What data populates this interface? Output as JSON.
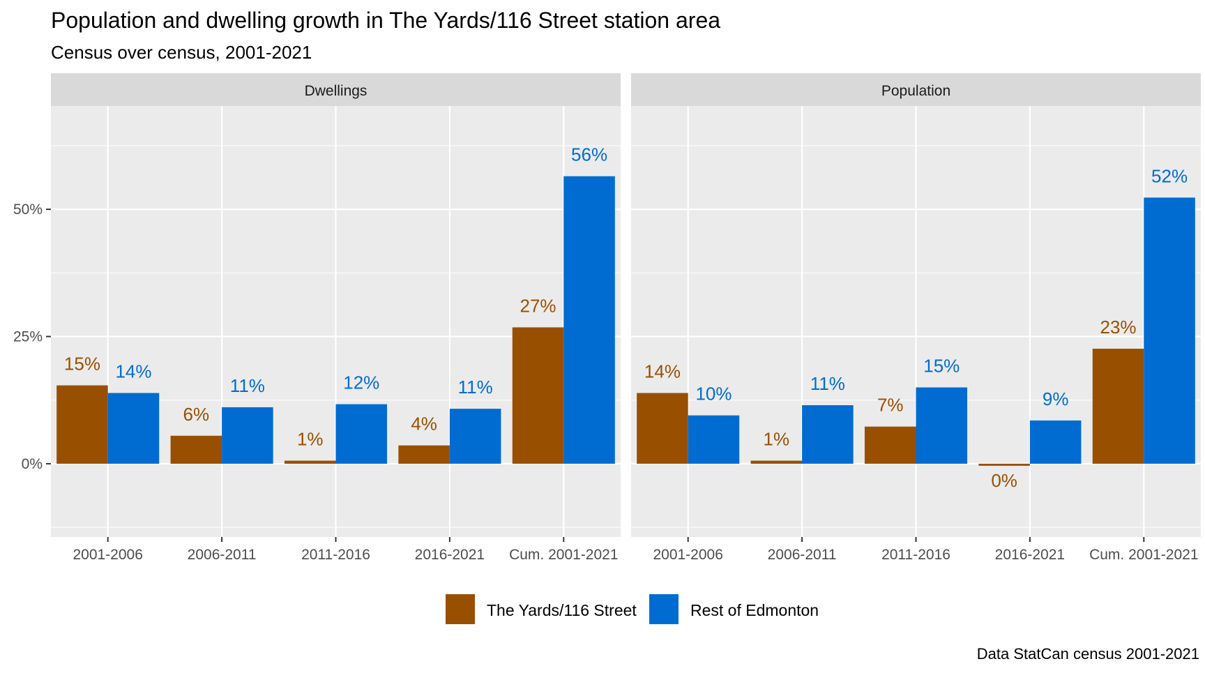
{
  "chart_data": {
    "type": "bar",
    "title": "Population and dwelling growth in The Yards/116 Street station area",
    "subtitle": "Census over census, 2001-2021",
    "caption": "Data StatCan census 2001-2021",
    "xlabel": "",
    "ylabel": "",
    "ylim": [
      -14.4,
      70.3
    ],
    "y_ticks": [
      0,
      25,
      50
    ],
    "y_tick_labels": [
      "0%",
      "25%",
      "50%"
    ],
    "grid": true,
    "legend_position": "bottom",
    "categories": [
      "2001-2006",
      "2006-2011",
      "2011-2016",
      "2016-2021",
      "Cum. 2001-2021"
    ],
    "series_colors": {
      "The Yards/116 Street": "#994F00",
      "Rest of Edmonton": "#006CD1"
    },
    "legend": [
      "The Yards/116 Street",
      "Rest of Edmonton"
    ],
    "panels": [
      {
        "name": "Dwellings",
        "series": [
          {
            "name": "The Yards/116 Street",
            "values": [
              15.4,
              5.5,
              0.6,
              3.6,
              26.8
            ],
            "labels": [
              "15%",
              "6%",
              "1%",
              "4%",
              "27%"
            ]
          },
          {
            "name": "Rest of Edmonton",
            "values": [
              13.9,
              11.1,
              11.7,
              10.8,
              56.5
            ],
            "labels": [
              "14%",
              "11%",
              "12%",
              "11%",
              "56%"
            ]
          }
        ]
      },
      {
        "name": "Population",
        "series": [
          {
            "name": "The Yards/116 Street",
            "values": [
              13.9,
              0.6,
              7.3,
              -0.4,
              22.6
            ],
            "labels": [
              "14%",
              "1%",
              "7%",
              "0%",
              "23%"
            ]
          },
          {
            "name": "Rest of Edmonton",
            "values": [
              9.5,
              11.5,
              15.0,
              8.5,
              52.3
            ],
            "labels": [
              "10%",
              "11%",
              "15%",
              "9%",
              "52%"
            ]
          }
        ]
      }
    ]
  }
}
